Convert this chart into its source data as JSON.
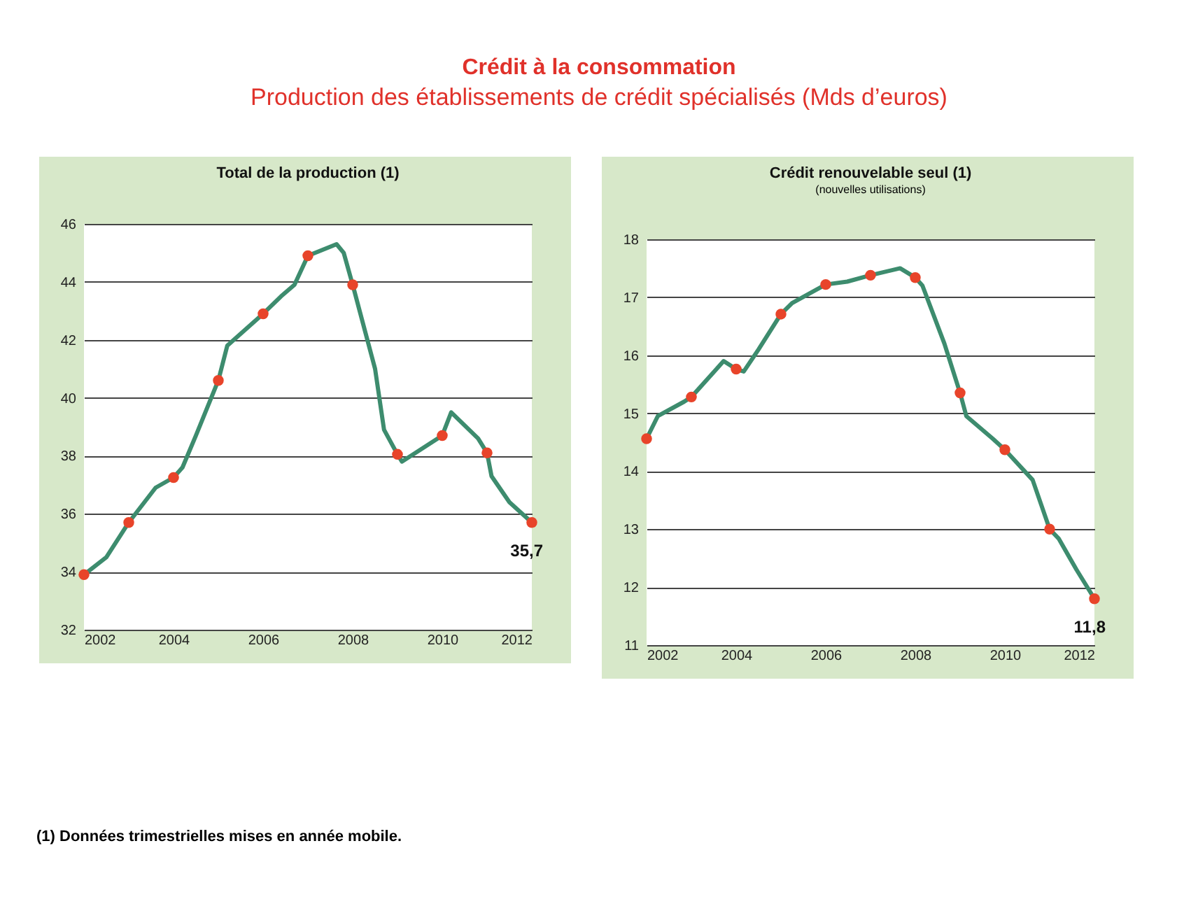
{
  "chart_data": [
    {
      "type": "other",
      "title": "Crédit à la consommation",
      "subtitle": "Production des établissements de crédit spécialisés (Mds d’euros)",
      "annotations": [
        "(1) Données trimestrielles mises en année mobile."
      ]
    },
    {
      "type": "line",
      "title": "Total de la production (1)",
      "xlim": [
        2002,
        2012
      ],
      "xticks": [
        2002,
        2004,
        2006,
        2008,
        2010,
        2012
      ],
      "ylim": [
        32,
        46
      ],
      "yticks": [
        32,
        34,
        36,
        38,
        40,
        42,
        44,
        46
      ],
      "grid": "y",
      "series": [
        {
          "type": "line",
          "color": "#3d8c6e",
          "marker": "none",
          "x": [
            2002,
            2002.5,
            2003,
            2003.6,
            2004,
            2004.2,
            2004.5,
            2005,
            2005.2,
            2006,
            2006.4,
            2006.7,
            2007,
            2007.64,
            2007.8,
            2008,
            2008.5,
            2008.7,
            2009,
            2009.1,
            2010,
            2010.2,
            2010.8,
            2011,
            2011.1,
            2011.5,
            2012
          ],
          "values": [
            33.9,
            34.5,
            35.7,
            36.9,
            37.25,
            37.6,
            38.7,
            40.6,
            41.8,
            42.9,
            43.5,
            43.9,
            44.9,
            45.3,
            45.0,
            43.9,
            41.0,
            38.9,
            38.05,
            37.8,
            38.7,
            39.5,
            38.6,
            38.1,
            37.3,
            36.4,
            35.7
          ]
        },
        {
          "type": "scatter",
          "color": "#e8442a",
          "marker": "circle",
          "x": [
            2002,
            2003,
            2004,
            2005,
            2006,
            2007,
            2008,
            2009,
            2010,
            2011,
            2012
          ],
          "values": [
            33.9,
            35.7,
            37.25,
            40.6,
            42.9,
            44.9,
            43.9,
            38.05,
            38.7,
            38.1,
            35.7
          ]
        }
      ],
      "annotations": [
        {
          "text": "35,7",
          "x": 2012,
          "y": 35.7
        }
      ]
    },
    {
      "type": "line",
      "title": "Crédit renouvelable seul (1)",
      "subtitle": "(nouvelles utilisations)",
      "xlim": [
        2002,
        2012
      ],
      "xticks": [
        2002,
        2004,
        2006,
        2008,
        2010,
        2012
      ],
      "ylim": [
        11,
        18
      ],
      "yticks": [
        11,
        12,
        13,
        14,
        15,
        16,
        17,
        18
      ],
      "grid": "y",
      "series": [
        {
          "type": "line",
          "color": "#3d8c6e",
          "marker": "none",
          "x": [
            2002,
            2002.25,
            2002.84,
            2003,
            2003.72,
            2004,
            2004.17,
            2004.5,
            2005,
            2005.25,
            2006,
            2006.48,
            2007,
            2007.66,
            2008,
            2008.16,
            2008.65,
            2009,
            2009.14,
            2009.73,
            2010,
            2010.62,
            2011,
            2011.2,
            2011.6,
            2012
          ],
          "values": [
            14.56,
            14.95,
            15.2,
            15.28,
            15.9,
            15.76,
            15.72,
            16.1,
            16.71,
            16.9,
            17.22,
            17.27,
            17.38,
            17.5,
            17.34,
            17.2,
            16.2,
            15.35,
            14.95,
            14.56,
            14.37,
            13.85,
            13.0,
            12.84,
            12.3,
            11.8
          ]
        },
        {
          "type": "scatter",
          "color": "#e8442a",
          "marker": "circle",
          "x": [
            2002,
            2003,
            2004,
            2005,
            2006,
            2007,
            2008,
            2009,
            2010,
            2011,
            2012
          ],
          "values": [
            14.56,
            15.28,
            15.76,
            16.71,
            17.22,
            17.38,
            17.34,
            15.35,
            14.37,
            13.0,
            11.8
          ]
        }
      ],
      "annotations": [
        {
          "text": "11,8",
          "x": 2012,
          "y": 11.8
        }
      ]
    }
  ]
}
